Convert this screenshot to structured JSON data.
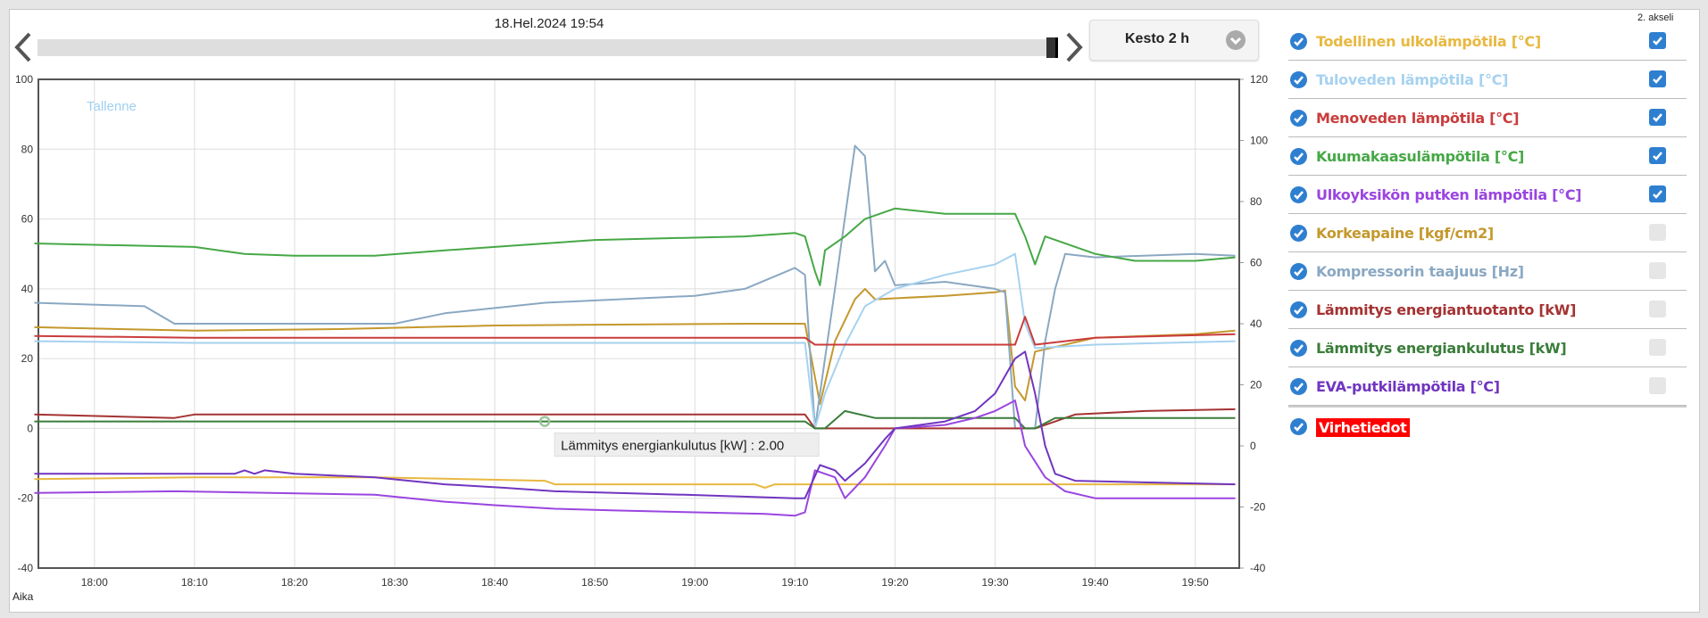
{
  "header": {
    "date": "18.Hel.2024 19:54",
    "duration_label": "Kesto 2 h"
  },
  "legend": {
    "axis2_header": "2. akseli",
    "items": [
      {
        "label": "Todellinen ulkolämpötila [°C]",
        "color": "#e8b840",
        "axis2": true
      },
      {
        "label": "Tuloveden lämpötila [°C]",
        "color": "#a6d2f0",
        "axis2": true
      },
      {
        "label": "Menoveden lämpötila [°C]",
        "color": "#c93c3c",
        "axis2": true
      },
      {
        "label": "Kuumakaasulämpötila [°C]",
        "color": "#46a846",
        "axis2": true
      },
      {
        "label": "Ulkoyksikön putken lämpötila [°C]",
        "color": "#9a45e0",
        "axis2": true
      },
      {
        "label": "Korkeapaine [kgf/cm2]",
        "color": "#c4982c",
        "axis2": false
      },
      {
        "label": "Kompressorin taajuus [Hz]",
        "color": "#8aa8c2",
        "axis2": false
      },
      {
        "label": "Lämmitys energiantuotanto [kW]",
        "color": "#a53232",
        "axis2": false
      },
      {
        "label": "Lämmitys energiankulutus [kW]",
        "color": "#3a7d3a",
        "axis2": false
      },
      {
        "label": "EVA-putkilämpötila [°C]",
        "color": "#7035c0",
        "axis2": false
      }
    ],
    "errors_label": "Virhetiedot"
  },
  "chart_data": {
    "type": "line",
    "title": "",
    "annotation": "Tallenne",
    "xlabel": "Aika",
    "x_ticks": [
      "18:00",
      "18:10",
      "18:20",
      "18:30",
      "18:40",
      "18:50",
      "19:00",
      "19:10",
      "19:20",
      "19:30",
      "19:40",
      "19:50"
    ],
    "xlim": [
      "17:54",
      "19:54"
    ],
    "y_left": {
      "ylim": [
        -40,
        100
      ],
      "ticks": [
        100,
        80,
        60,
        40,
        20,
        0,
        -20,
        -40
      ]
    },
    "y_right": {
      "ylim": [
        -40,
        120
      ],
      "ticks": [
        120,
        100,
        80,
        60,
        40,
        20,
        0,
        -20,
        -40
      ]
    },
    "grid": true,
    "tooltip": {
      "text": "Lämmitys energiankulutus [kW] : 2.00",
      "x": "18:45",
      "y": 2
    },
    "series": [
      {
        "name": "Todellinen ulkolämpötila [°C]",
        "points": [
          [
            "17:54",
            -14.5
          ],
          [
            "18:10",
            -14
          ],
          [
            "18:28",
            -14
          ],
          [
            "18:45",
            -15
          ],
          [
            "18:46",
            -16
          ],
          [
            "19:06",
            -16
          ],
          [
            "19:07",
            -17
          ],
          [
            "19:08",
            -16
          ],
          [
            "19:54",
            -16
          ]
        ]
      },
      {
        "name": "Tuloveden lämpötila [°C]",
        "points": [
          [
            "17:54",
            25
          ],
          [
            "18:10",
            24.5
          ],
          [
            "19:11",
            24.5
          ],
          [
            "19:12",
            0
          ],
          [
            "19:13",
            10
          ],
          [
            "19:15",
            24
          ],
          [
            "19:17",
            35
          ],
          [
            "19:20",
            40
          ],
          [
            "19:25",
            44
          ],
          [
            "19:30",
            47
          ],
          [
            "19:32",
            50
          ],
          [
            "19:33",
            30
          ],
          [
            "19:34",
            23
          ],
          [
            "19:40",
            24
          ],
          [
            "19:54",
            25
          ]
        ]
      },
      {
        "name": "Menoveden lämpötila [°C]",
        "points": [
          [
            "17:54",
            26.5
          ],
          [
            "18:10",
            26
          ],
          [
            "19:11",
            26
          ],
          [
            "19:12",
            24
          ],
          [
            "19:32",
            24
          ],
          [
            "19:33",
            32
          ],
          [
            "19:34",
            24
          ],
          [
            "19:40",
            26
          ],
          [
            "19:54",
            27
          ]
        ]
      },
      {
        "name": "Kuumakaasulämpötila [°C]",
        "points": [
          [
            "17:54",
            53
          ],
          [
            "18:10",
            52
          ],
          [
            "18:15",
            50
          ],
          [
            "18:20",
            49.5
          ],
          [
            "18:28",
            49.5
          ],
          [
            "18:35",
            51
          ],
          [
            "18:40",
            52
          ],
          [
            "18:45",
            53
          ],
          [
            "18:50",
            54
          ],
          [
            "19:05",
            55
          ],
          [
            "19:10",
            56
          ],
          [
            "19:11",
            55
          ],
          [
            "19:12",
            45
          ],
          [
            "19:12.5",
            41
          ],
          [
            "19:13",
            51
          ],
          [
            "19:15",
            55
          ],
          [
            "19:17",
            60
          ],
          [
            "19:19",
            62
          ],
          [
            "19:20",
            63
          ],
          [
            "19:25",
            61.5
          ],
          [
            "19:32",
            61.5
          ],
          [
            "19:33",
            55
          ],
          [
            "19:34",
            47
          ],
          [
            "19:35",
            55
          ],
          [
            "19:40",
            50
          ],
          [
            "19:44",
            48
          ],
          [
            "19:50",
            48
          ],
          [
            "19:54",
            49
          ]
        ]
      },
      {
        "name": "Ulkoyksikön putken lämpötila [°C]",
        "points": [
          [
            "17:54",
            -18.5
          ],
          [
            "18:08",
            -18
          ],
          [
            "18:28",
            -19
          ],
          [
            "18:35",
            -21
          ],
          [
            "18:40",
            -22
          ],
          [
            "18:46",
            -23
          ],
          [
            "18:52",
            -23.5
          ],
          [
            "19:07",
            -24.5
          ],
          [
            "19:10",
            -25
          ],
          [
            "19:11",
            -24
          ],
          [
            "19:12",
            -12
          ],
          [
            "19:14",
            -14
          ],
          [
            "19:15",
            -20
          ],
          [
            "19:17",
            -14
          ],
          [
            "19:19",
            -5
          ],
          [
            "19:20",
            0
          ],
          [
            "19:25",
            1
          ],
          [
            "19:28",
            3
          ],
          [
            "19:30",
            5
          ],
          [
            "19:32",
            8
          ],
          [
            "19:33",
            -5
          ],
          [
            "19:35",
            -14
          ],
          [
            "19:37",
            -18
          ],
          [
            "19:40",
            -20
          ],
          [
            "19:54",
            -20
          ]
        ]
      },
      {
        "name": "Korkeapaine [kgf/cm2]",
        "points": [
          [
            "17:54",
            29
          ],
          [
            "18:10",
            28
          ],
          [
            "18:25",
            28.5
          ],
          [
            "18:40",
            29.5
          ],
          [
            "19:05",
            30
          ],
          [
            "19:11",
            30
          ],
          [
            "19:12.5",
            7
          ],
          [
            "19:14",
            25
          ],
          [
            "19:16",
            37
          ],
          [
            "19:17",
            40
          ],
          [
            "19:18",
            37
          ],
          [
            "19:25",
            38
          ],
          [
            "19:30",
            39
          ],
          [
            "19:31",
            39.5
          ],
          [
            "19:32",
            12
          ],
          [
            "19:33",
            8
          ],
          [
            "19:34",
            22
          ],
          [
            "19:40",
            26
          ],
          [
            "19:50",
            27
          ],
          [
            "19:54",
            28
          ]
        ]
      },
      {
        "name": "Kompressorin taajuus [Hz]",
        "points": [
          [
            "17:54",
            36
          ],
          [
            "18:05",
            35
          ],
          [
            "18:08",
            30
          ],
          [
            "18:30",
            30
          ],
          [
            "18:35",
            33
          ],
          [
            "18:45",
            36
          ],
          [
            "19:00",
            38
          ],
          [
            "19:05",
            40
          ],
          [
            "19:10",
            46
          ],
          [
            "19:11",
            44
          ],
          [
            "19:12",
            0
          ],
          [
            "19:14",
            40
          ],
          [
            "19:16",
            81
          ],
          [
            "19:17",
            78
          ],
          [
            "19:18",
            45
          ],
          [
            "19:19",
            48
          ],
          [
            "19:20",
            41
          ],
          [
            "19:25",
            42
          ],
          [
            "19:30",
            40
          ],
          [
            "19:31",
            39
          ],
          [
            "19:32",
            0
          ],
          [
            "19:34",
            0
          ],
          [
            "19:35",
            25
          ],
          [
            "19:36",
            40
          ],
          [
            "19:37",
            50
          ],
          [
            "19:40",
            49
          ],
          [
            "19:50",
            50
          ],
          [
            "19:54",
            49.5
          ]
        ]
      },
      {
        "name": "Lämmitys energiantuotanto [kW]",
        "points": [
          [
            "17:54",
            4
          ],
          [
            "18:08",
            3
          ],
          [
            "18:10",
            4
          ],
          [
            "19:11",
            4
          ],
          [
            "19:12",
            0
          ],
          [
            "19:34",
            0
          ],
          [
            "19:38",
            4
          ],
          [
            "19:45",
            5
          ],
          [
            "19:54",
            5.5
          ]
        ]
      },
      {
        "name": "Lämmitys energiankulutus [kW]",
        "points": [
          [
            "17:54",
            2
          ],
          [
            "19:11",
            2
          ],
          [
            "19:12",
            0
          ],
          [
            "19:13",
            0
          ],
          [
            "19:15",
            5
          ],
          [
            "19:18",
            3
          ],
          [
            "19:32",
            3
          ],
          [
            "19:33",
            0
          ],
          [
            "19:34",
            0
          ],
          [
            "19:36",
            3
          ],
          [
            "19:54",
            3
          ]
        ]
      },
      {
        "name": "EVA-putkilämpötila [°C]",
        "points": [
          [
            "17:54",
            -13
          ],
          [
            "18:14",
            -13
          ],
          [
            "18:15",
            -12
          ],
          [
            "18:16",
            -13
          ],
          [
            "18:17",
            -12
          ],
          [
            "18:20",
            -13
          ],
          [
            "18:28",
            -14
          ],
          [
            "18:35",
            -16
          ],
          [
            "18:41",
            -17
          ],
          [
            "18:46",
            -18
          ],
          [
            "18:59",
            -19
          ],
          [
            "19:10",
            -20
          ],
          [
            "19:11",
            -20
          ],
          [
            "19:12.5",
            -10.5
          ],
          [
            "19:14",
            -12
          ],
          [
            "19:15",
            -15
          ],
          [
            "19:17",
            -10
          ],
          [
            "19:19",
            -3
          ],
          [
            "19:20",
            0
          ],
          [
            "19:25",
            2
          ],
          [
            "19:28",
            5
          ],
          [
            "19:30",
            10
          ],
          [
            "19:32",
            20
          ],
          [
            "19:33",
            22
          ],
          [
            "19:34",
            10
          ],
          [
            "19:35",
            -5
          ],
          [
            "19:36",
            -13
          ],
          [
            "19:38",
            -15
          ],
          [
            "19:54",
            -16
          ]
        ]
      }
    ]
  }
}
